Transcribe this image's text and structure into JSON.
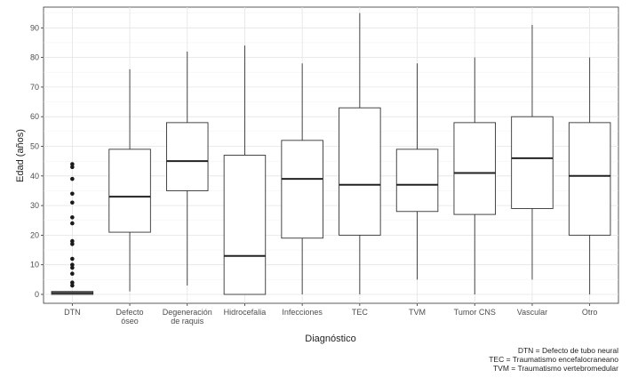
{
  "chart_data": {
    "type": "boxplot",
    "xlabel": "Diagnóstico",
    "ylabel": "Edad (años)",
    "ylim": [
      -3,
      97
    ],
    "yticks": [
      0,
      10,
      20,
      30,
      40,
      50,
      60,
      70,
      80,
      90
    ],
    "grid": true,
    "categories": [
      [
        "DTN"
      ],
      [
        "Defecto",
        "óseo"
      ],
      [
        "Degeneración",
        "de raquis"
      ],
      [
        "Hidrocefalia"
      ],
      [
        "Infecciones"
      ],
      [
        "TEC"
      ],
      [
        "TVM"
      ],
      [
        "Tumor CNS"
      ],
      [
        "Vascular"
      ],
      [
        "Otro"
      ]
    ],
    "boxes": [
      {
        "min": 0,
        "q1": 0,
        "median": 0.5,
        "q3": 1,
        "max": 1,
        "outliers": [
          3,
          4,
          7,
          9,
          10,
          12,
          17,
          18,
          24,
          26,
          31,
          34,
          39,
          43,
          44
        ]
      },
      {
        "min": 1,
        "q1": 21,
        "median": 33,
        "q3": 49,
        "max": 76,
        "outliers": []
      },
      {
        "min": 3,
        "q1": 35,
        "median": 45,
        "q3": 58,
        "max": 82,
        "outliers": []
      },
      {
        "min": 0,
        "q1": 0,
        "median": 13,
        "q3": 47,
        "max": 84,
        "outliers": []
      },
      {
        "min": 0,
        "q1": 19,
        "median": 39,
        "q3": 52,
        "max": 78,
        "outliers": []
      },
      {
        "min": 0,
        "q1": 20,
        "median": 37,
        "q3": 63,
        "max": 95,
        "outliers": []
      },
      {
        "min": 5,
        "q1": 28,
        "median": 37,
        "q3": 49,
        "max": 78,
        "outliers": []
      },
      {
        "min": 0,
        "q1": 27,
        "median": 41,
        "q3": 58,
        "max": 80,
        "outliers": []
      },
      {
        "min": 5,
        "q1": 29,
        "median": 46,
        "q3": 60,
        "max": 91,
        "outliers": []
      },
      {
        "min": 0,
        "q1": 20,
        "median": 40,
        "q3": 58,
        "max": 80,
        "outliers": []
      }
    ],
    "footnotes": [
      "DTN = Defecto de tubo neural",
      "TEC = Traumatismo encefalocraneano",
      "TVM = Traumatismo vertebromedular"
    ]
  }
}
